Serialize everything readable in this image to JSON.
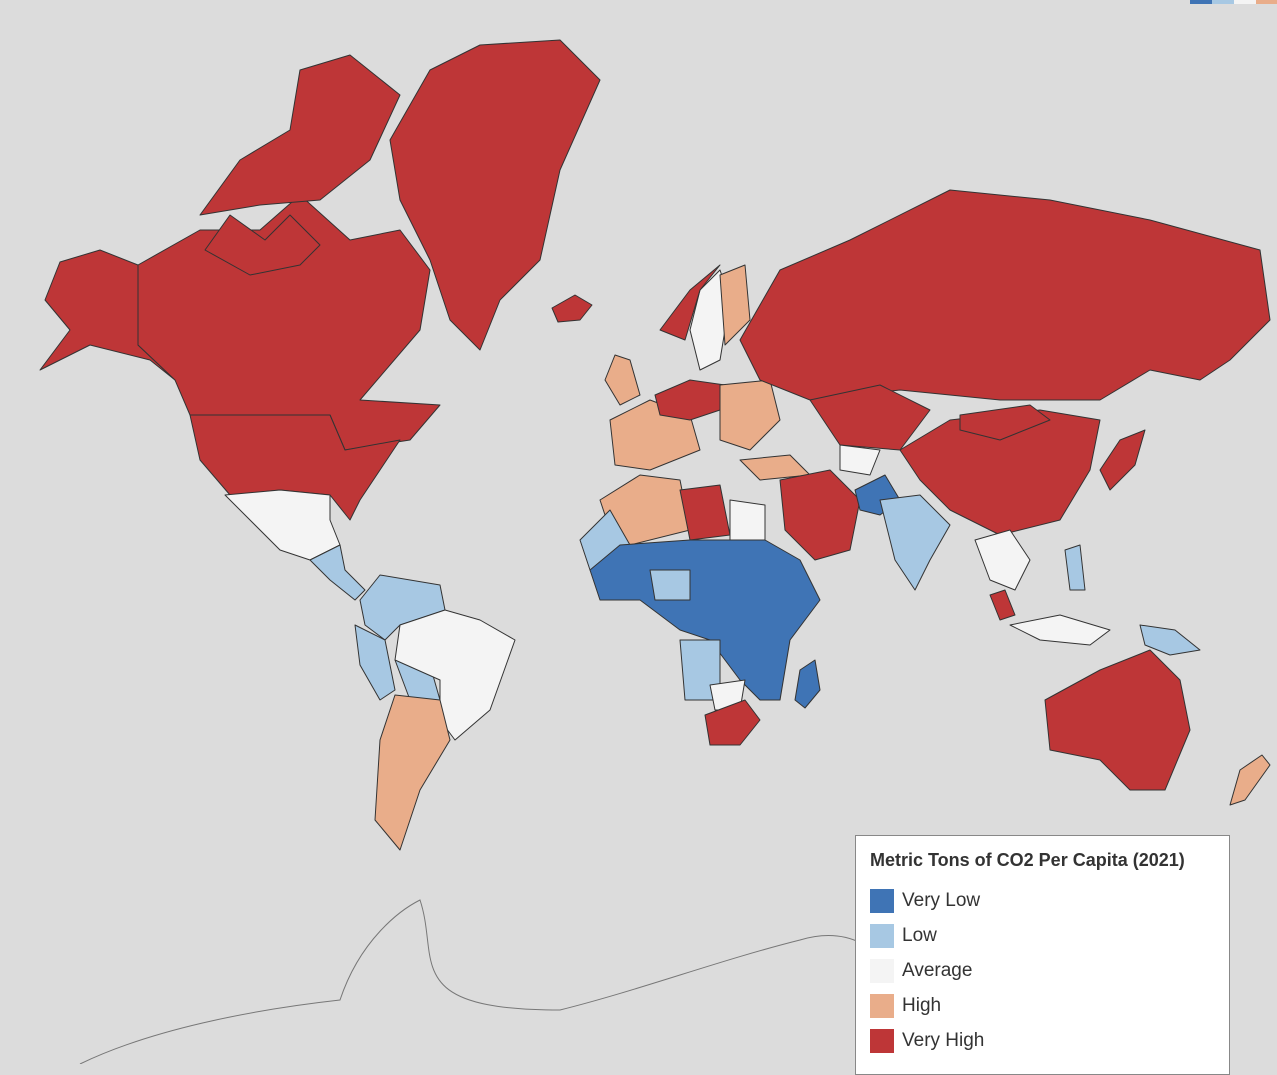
{
  "legend": {
    "title": "Metric Tons of CO2 Per Capita (2021)",
    "items": [
      {
        "label": "Very Low",
        "color": "#3f74b5"
      },
      {
        "label": "Low",
        "color": "#a7c8e3"
      },
      {
        "label": "Average",
        "color": "#f4f4f4"
      },
      {
        "label": "High",
        "color": "#e9ad8a"
      },
      {
        "label": "Very High",
        "color": "#be3637"
      }
    ]
  },
  "colors": {
    "ocean": "#dcdcdc",
    "border": "#333333",
    "very_low": "#3f74b5",
    "low": "#a7c8e3",
    "average": "#f4f4f4",
    "high": "#e9ad8a",
    "very_high": "#be3637"
  }
}
